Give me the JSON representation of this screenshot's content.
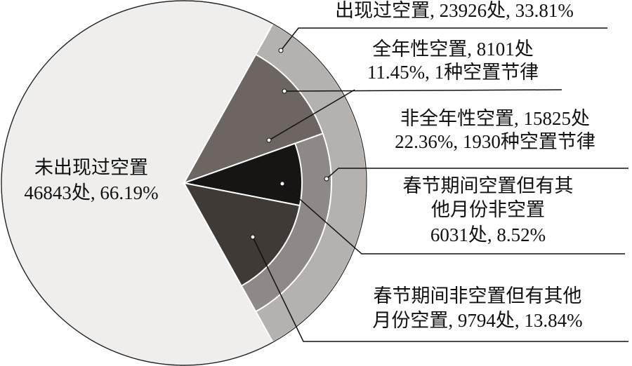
{
  "chart_data": {
    "type": "nested-pie",
    "slices": [
      {
        "label": [
          "未出现过空置",
          "46843处, 66.19%"
        ],
        "value": 66.19,
        "color": "#efeeed"
      },
      {
        "label": [
          "出现过空置, 23926处, 33.81%"
        ],
        "value": 33.81,
        "color": "#b5b1af",
        "children": [
          {
            "label": [
              "全年性空置, 8101处",
              "11.45%, 1种空置节律"
            ],
            "value": 11.45,
            "color": "#6c6562"
          },
          {
            "label": [
              "非全年性空置, 15825处",
              "22.36%, 1930种空置节律"
            ],
            "value": 22.36,
            "color": "#8e8886",
            "children": [
              {
                "label": [
                  "春节期间空置但有其",
                  "他月份非空置",
                  "6031处, 8.52%"
                ],
                "value": 8.52,
                "color": "#171414"
              },
              {
                "label": [
                  "春节期间非空置但有其他",
                  "月份空置, 9794处, 13.84%"
                ],
                "value": 13.84,
                "color": "#403a37"
              }
            ]
          }
        ]
      }
    ]
  }
}
